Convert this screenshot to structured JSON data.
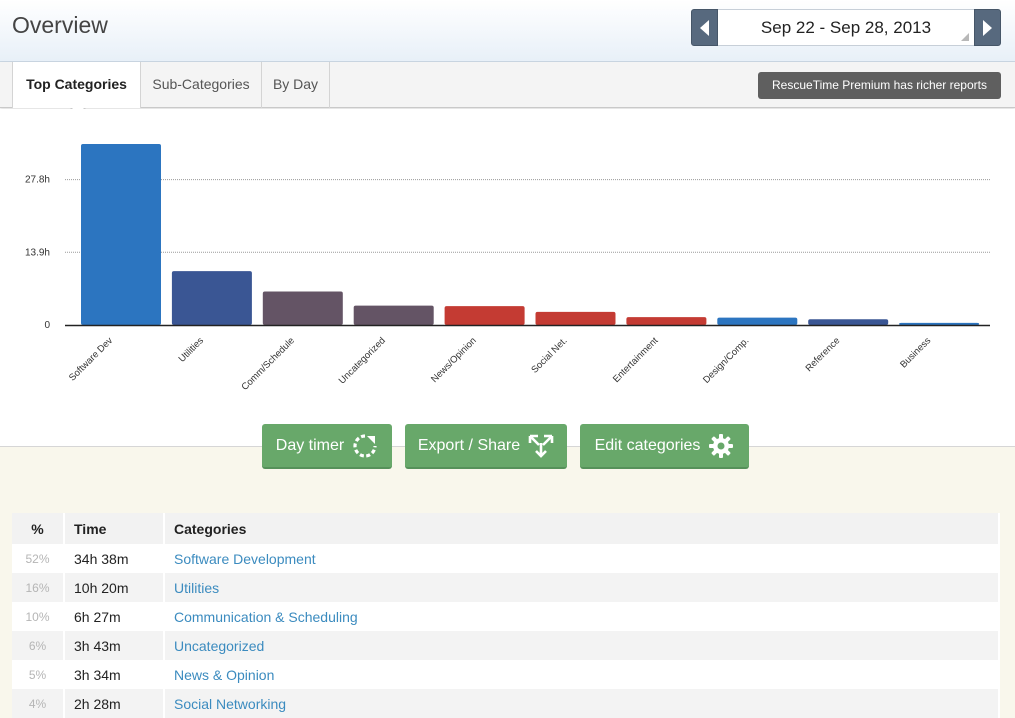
{
  "header": {
    "title": "Overview"
  },
  "date_nav": {
    "range": "Sep 22 - Sep 28, 2013"
  },
  "tabs": [
    {
      "label": "Top Categories",
      "active": true
    },
    {
      "label": "Sub-Categories",
      "active": false
    },
    {
      "label": "By Day",
      "active": false
    }
  ],
  "premium_label": "RescueTime Premium has richer reports",
  "chart_data": {
    "type": "bar",
    "categories": [
      "Software Dev",
      "Utilities",
      "Comm/Schedule",
      "Uncategorized",
      "News/Opinion",
      "Social Net.",
      "Entertainment",
      "Design/Comp.",
      "Reference",
      "Business"
    ],
    "values": [
      34.6,
      10.3,
      6.4,
      3.7,
      3.6,
      2.5,
      1.5,
      1.4,
      1.1,
      0.4
    ],
    "colors": [
      "#2c75c0",
      "#3a5694",
      "#645465",
      "#645465",
      "#c43b33",
      "#c43b33",
      "#c43b33",
      "#2c75c0",
      "#3a5694",
      "#2c75c0"
    ],
    "yticks": [
      {
        "value": 27.8,
        "label": "27.8h"
      },
      {
        "value": 13.9,
        "label": "13.9h"
      },
      {
        "value": 0,
        "label": "0"
      }
    ],
    "ylim": [
      0,
      34.6
    ],
    "grid": true
  },
  "actions": {
    "day_timer": "Day timer",
    "export_share": "Export / Share",
    "edit_categories": "Edit categories"
  },
  "table": {
    "headers": [
      "%",
      "Time",
      "Categories"
    ],
    "rows": [
      {
        "pct": "52%",
        "time": "34h 38m",
        "category": "Software Development"
      },
      {
        "pct": "16%",
        "time": "10h 20m",
        "category": "Utilities"
      },
      {
        "pct": "10%",
        "time": "6h 27m",
        "category": "Communication & Scheduling"
      },
      {
        "pct": "6%",
        "time": "3h 43m",
        "category": "Uncategorized"
      },
      {
        "pct": "5%",
        "time": "3h 34m",
        "category": "News & Opinion"
      },
      {
        "pct": "4%",
        "time": "2h 28m",
        "category": "Social Networking"
      }
    ]
  }
}
